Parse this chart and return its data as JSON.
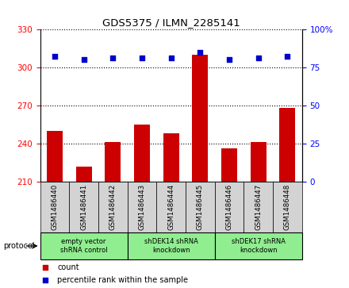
{
  "title": "GDS5375 / ILMN_2285141",
  "samples": [
    "GSM1486440",
    "GSM1486441",
    "GSM1486442",
    "GSM1486443",
    "GSM1486444",
    "GSM1486445",
    "GSM1486446",
    "GSM1486447",
    "GSM1486448"
  ],
  "counts": [
    250,
    222,
    241,
    255,
    248,
    310,
    236,
    241,
    268
  ],
  "percentile_ranks": [
    82,
    80,
    81,
    81,
    81,
    85,
    80,
    81,
    82
  ],
  "ylim_left": [
    210,
    330
  ],
  "yticks_left": [
    210,
    240,
    270,
    300,
    330
  ],
  "ylim_right": [
    0,
    100
  ],
  "yticks_right": [
    0,
    25,
    50,
    75,
    100
  ],
  "bar_color": "#cc0000",
  "dot_color": "#0000cc",
  "bar_bottom": 210,
  "groups": [
    {
      "label": "empty vector\nshRNA control",
      "start": 0,
      "end": 3,
      "color": "#90ee90"
    },
    {
      "label": "shDEK14 shRNA\nknockdown",
      "start": 3,
      "end": 6,
      "color": "#90ee90"
    },
    {
      "label": "shDEK17 shRNA\nknockdown",
      "start": 6,
      "end": 9,
      "color": "#90ee90"
    }
  ],
  "protocol_label": "protocol",
  "legend_count_label": "count",
  "legend_percentile_label": "percentile rank within the sample",
  "sample_bg": "#d3d3d3",
  "plot_bg": "#ffffff"
}
